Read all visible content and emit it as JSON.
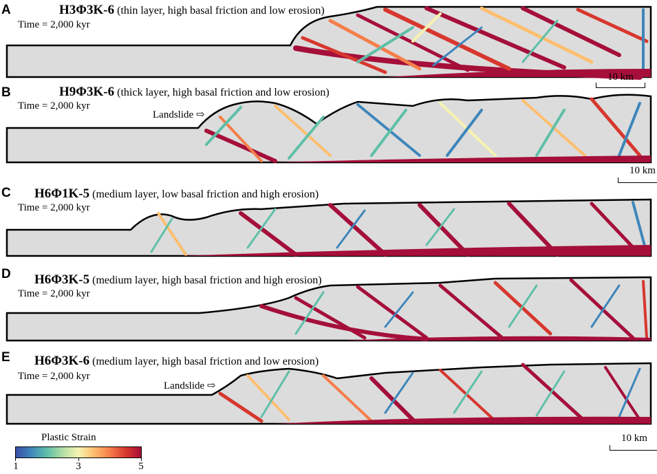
{
  "panels": [
    {
      "letter": "A",
      "code": "H3Φ3K-6",
      "desc": "(thin layer, high basal friction and low erosion)",
      "time": "Time = 2,000 kyr",
      "scale": "10 km",
      "landslide": ""
    },
    {
      "letter": "B",
      "code": "H9Φ3K-6",
      "desc": "(thick layer, high basal friction and low erosion)",
      "time": "Time = 2,000 kyr",
      "scale": "10 km",
      "landslide": "Landslide"
    },
    {
      "letter": "C",
      "code": "H6Φ1K-5",
      "desc": "(medium layer, low basal friction and high erosion)",
      "time": "Time = 2,000 kyr",
      "scale": "",
      "landslide": ""
    },
    {
      "letter": "D",
      "code": "H6Φ3K-5",
      "desc": "(medium layer, high basal friction and high erosion)",
      "time": "Time = 2,000 kyr",
      "scale": "",
      "landslide": ""
    },
    {
      "letter": "E",
      "code": "H6Φ3K-6",
      "desc": "(medium layer, high basal friction and low erosion)",
      "time": "Time = 2,000 kyr",
      "scale": "10 km",
      "landslide": "Landslide"
    }
  ],
  "colorbar": {
    "title": "Plastic Strain",
    "min_label": "1",
    "mid_label": "3",
    "max_label": "5"
  },
  "colors": {
    "rock": "#dcdcdc",
    "low_strain": "#3b4fa5",
    "mid_strain": "#8fd0a0",
    "high_strain": "#a50f3a"
  }
}
